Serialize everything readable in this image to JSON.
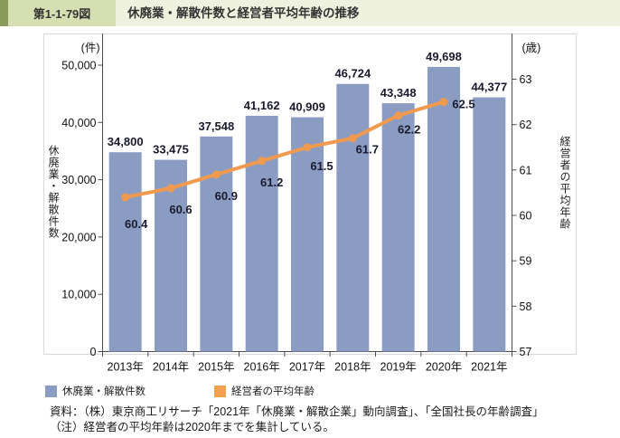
{
  "header": {
    "fig_no": "第1-1-79図",
    "title": "休廃業・解散件数と経営者平均年齢の推移"
  },
  "chart_data": {
    "type": "combo",
    "categories": [
      "2013年",
      "2014年",
      "2015年",
      "2016年",
      "2017年",
      "2018年",
      "2019年",
      "2020年",
      "2021年"
    ],
    "series": [
      {
        "name": "休廃業・解散件数",
        "type": "bar",
        "axis": "left",
        "color": "#8b9cc3",
        "values": [
          34800,
          33475,
          37548,
          41162,
          40909,
          46724,
          43348,
          49698,
          44377
        ],
        "labels": [
          "34,800",
          "33,475",
          "37,548",
          "41,162",
          "40,909",
          "46,724",
          "43,348",
          "49,698",
          "44,377"
        ]
      },
      {
        "name": "経営者の平均年齢",
        "type": "line",
        "axis": "right",
        "color": "#f09a50",
        "values": [
          60.4,
          60.6,
          60.9,
          61.2,
          61.5,
          61.7,
          62.2,
          62.5
        ],
        "labels": [
          "60.4",
          "60.6",
          "60.9",
          "61.2",
          "61.5",
          "61.7",
          "62.2",
          "62.5"
        ]
      }
    ],
    "left_axis": {
      "unit": "(件)",
      "title": "休廃業・解散件数",
      "min": 0,
      "max": 50000,
      "step": 10000,
      "tick_labels": [
        "0",
        "10,000",
        "20,000",
        "30,000",
        "40,000",
        "50,000"
      ]
    },
    "right_axis": {
      "unit": "(歳)",
      "title": "経営者の平均年齢",
      "min": 57,
      "max": 63,
      "step": 1,
      "tick_labels": [
        "57",
        "58",
        "59",
        "60",
        "61",
        "62",
        "63"
      ]
    },
    "grid": false,
    "label_color": "#1a1a2e"
  },
  "legend": {
    "items": [
      {
        "label": "休廃業・解散件数",
        "color": "#8b9cc3"
      },
      {
        "label": "経営者の平均年齢",
        "color": "#f0a050"
      }
    ]
  },
  "footer": {
    "source": "資料：（株）東京商工リサーチ「2021年「休廃業・解散企業」動向調査」、「全国社長の年齢調査」",
    "note": "（注）経営者の平均年齢は2020年までを集計している。"
  }
}
